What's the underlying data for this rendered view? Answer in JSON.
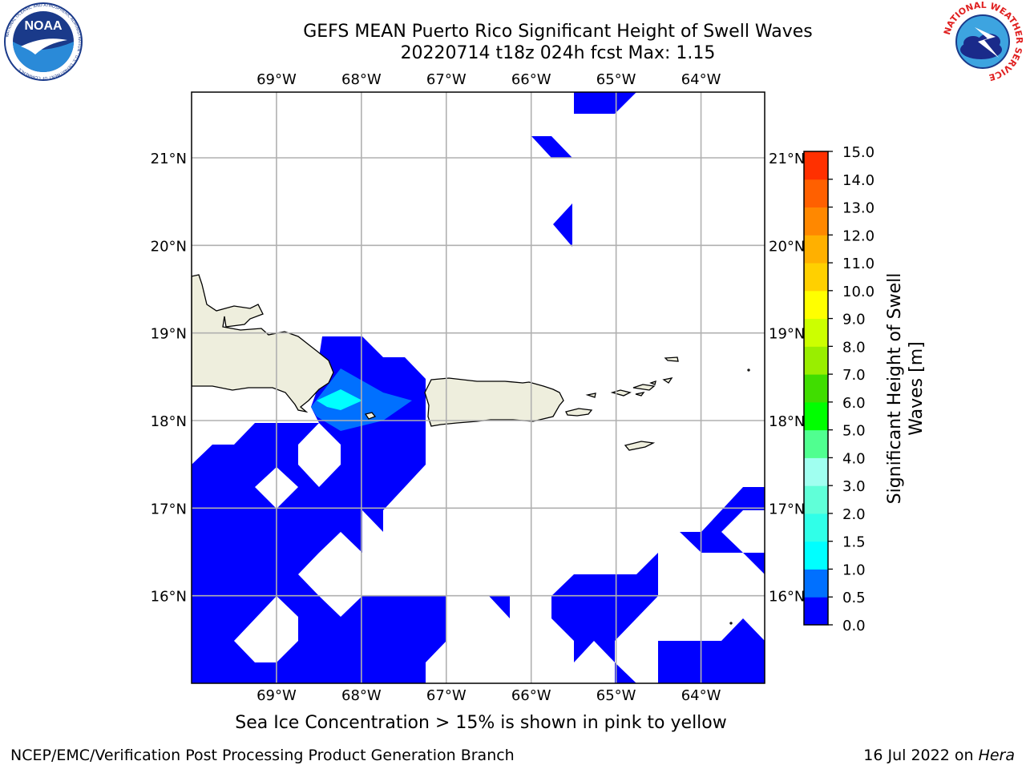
{
  "header": {
    "title_line1": "GEFS MEAN Puerto Rico Significant Height of Swell Waves",
    "title_line2": "20220714 t18z 024h fcst   Max: 1.15"
  },
  "map": {
    "lon_labels": [
      "69°W",
      "68°W",
      "67°W",
      "66°W",
      "65°W",
      "64°W"
    ],
    "lat_labels": [
      "21°N",
      "20°N",
      "19°N",
      "18°N",
      "17°N",
      "16°N"
    ],
    "lon_values": [
      -69,
      -68,
      -67,
      -66,
      -65,
      -64
    ],
    "lat_values": [
      21,
      20,
      19,
      18,
      17,
      16
    ],
    "lon_range": [
      -70,
      -63.25
    ],
    "lat_range": [
      15,
      21.75
    ],
    "land_color": "#eeeedd",
    "grid_color": "#b0b0b0"
  },
  "colorbar": {
    "label_line1": "Significant Height of Swell",
    "label_line2": "Waves [m]",
    "ticks": [
      "0.0",
      "0.5",
      "1.0",
      "1.5",
      "2.0",
      "3.0",
      "4.0",
      "5.0",
      "6.0",
      "7.0",
      "8.0",
      "9.0",
      "10.0",
      "11.0",
      "12.0",
      "13.0",
      "14.0",
      "15.0"
    ],
    "colors": [
      "#0000ff",
      "#0070ff",
      "#00ffff",
      "#30ffe8",
      "#60ffd8",
      "#a0fff0",
      "#50ff90",
      "#00ff00",
      "#40dd00",
      "#99ee00",
      "#ccff00",
      "#ffff00",
      "#ffd000",
      "#ffb000",
      "#ff8800",
      "#ff6000",
      "#ff3000"
    ]
  },
  "logos": {
    "noaa_text": "NOAA",
    "noaa_ring": "NATIONAL OCEANIC AND ATMOSPHERIC ADMINISTRATION · U.S. DEPARTMENT OF COMMERCE",
    "nws_ring": "NATIONAL WEATHER SERVICE"
  },
  "footer": {
    "note": "Sea Ice Concentration > 15% is shown in pink to yellow",
    "credit": "NCEP/EMC/Verification Post Processing Product Generation Branch",
    "date_prefix": "16 Jul 2022 on ",
    "date_host": "Hera"
  }
}
